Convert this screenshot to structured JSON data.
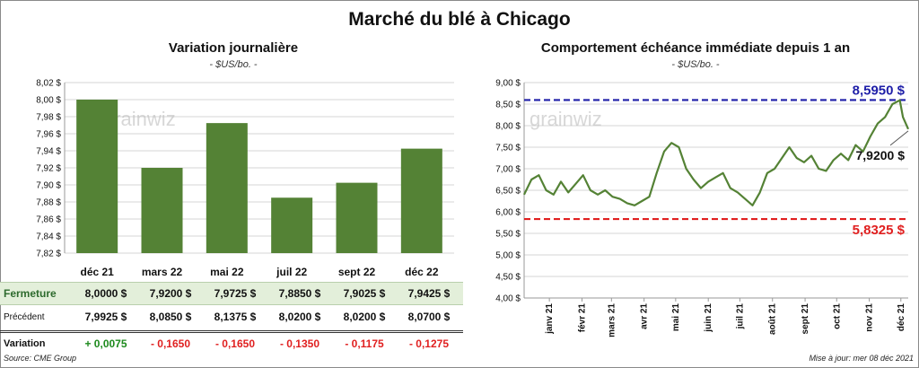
{
  "title": "Marché du blé à Chicago",
  "colors": {
    "bar": "#548235",
    "line": "#548235",
    "max": "#1f1fa8",
    "min": "#e02020",
    "pos": "#1d8a1d",
    "neg": "#e02020"
  },
  "left_panel": {
    "title": "Variation  journalière",
    "unit": "- $US/bo. -",
    "watermark": "grainwiz",
    "table": {
      "rows": [
        {
          "label": "Fermeture",
          "values": [
            "8,0000  $",
            "7,9200  $",
            "7,9725  $",
            "7,8850  $",
            "7,9025  $",
            "7,9425  $"
          ]
        },
        {
          "label": "Précédent",
          "values": [
            "7,9925  $",
            "8,0850  $",
            "8,1375  $",
            "8,0200  $",
            "8,0200  $",
            "8,0700  $"
          ]
        },
        {
          "label": "Variation",
          "values": [
            "+ 0,0075",
            "- 0,1650",
            "- 0,1650",
            "- 0,1350",
            "- 0,1175",
            "- 0,1275"
          ]
        }
      ]
    }
  },
  "right_panel": {
    "title": "Comportement  échéance immédiate depuis 1 an",
    "unit": "- $US/bo. -",
    "watermark": "grainwiz",
    "max_label": "8,5950  $",
    "min_label": "5,8325  $",
    "last_label": "7,9200 $"
  },
  "footer": {
    "source": "Source: CME Group",
    "updated": "Mise à jour: mer 08 déc 2021"
  },
  "chart_data": [
    {
      "type": "bar",
      "title": "Variation  journalière",
      "subtitle": "- $US/bo. -",
      "categories": [
        "déc 21",
        "mars 22",
        "mai 22",
        "juil 22",
        "sept 22",
        "déc 22"
      ],
      "values": [
        8.0,
        7.92,
        7.9725,
        7.885,
        7.9025,
        7.9425
      ],
      "ylim": [
        7.82,
        8.02
      ],
      "yticks": [
        "7,82 $",
        "7,84 $",
        "7,86 $",
        "7,88 $",
        "7,90 $",
        "7,92 $",
        "7,94 $",
        "7,96 $",
        "7,98 $",
        "8,00 $",
        "8,02 $"
      ],
      "grid": true
    },
    {
      "type": "line",
      "title": "Comportement  échéance immédiate depuis 1 an",
      "subtitle": "- $US/bo. -",
      "x": [
        "2020-12-08",
        "2020-12-15",
        "2020-12-22",
        "2020-12-29",
        "2021-01-05",
        "2021-01-12",
        "2021-01-19",
        "2021-01-26",
        "2021-02-02",
        "2021-02-09",
        "2021-02-16",
        "2021-02-23",
        "2021-03-02",
        "2021-03-09",
        "2021-03-16",
        "2021-03-23",
        "2021-03-30",
        "2021-04-06",
        "2021-04-13",
        "2021-04-20",
        "2021-04-27",
        "2021-05-04",
        "2021-05-11",
        "2021-05-18",
        "2021-05-25",
        "2021-06-01",
        "2021-06-08",
        "2021-06-15",
        "2021-06-22",
        "2021-06-29",
        "2021-07-06",
        "2021-07-13",
        "2021-07-20",
        "2021-07-27",
        "2021-08-03",
        "2021-08-10",
        "2021-08-17",
        "2021-08-24",
        "2021-08-31",
        "2021-09-07",
        "2021-09-14",
        "2021-09-21",
        "2021-09-28",
        "2021-10-05",
        "2021-10-12",
        "2021-10-19",
        "2021-10-26",
        "2021-11-02",
        "2021-11-09",
        "2021-11-16",
        "2021-11-23",
        "2021-11-30",
        "2021-12-03",
        "2021-12-08"
      ],
      "y": [
        6.4,
        6.75,
        6.85,
        6.5,
        6.4,
        6.7,
        6.45,
        6.65,
        6.85,
        6.5,
        6.4,
        6.5,
        6.35,
        6.3,
        6.2,
        6.15,
        6.25,
        6.35,
        6.9,
        7.4,
        7.6,
        7.5,
        7.0,
        6.75,
        6.55,
        6.7,
        6.8,
        6.9,
        6.55,
        6.45,
        6.3,
        6.15,
        6.45,
        6.9,
        7.0,
        7.25,
        7.5,
        7.25,
        7.15,
        7.3,
        7.0,
        6.95,
        7.2,
        7.35,
        7.2,
        7.55,
        7.4,
        7.75,
        8.05,
        8.2,
        8.5,
        8.59,
        8.2,
        7.92
      ],
      "xticks": [
        "janv 21",
        "févr 21",
        "mars 21",
        "avr 21",
        "mai 21",
        "juin 21",
        "juil 21",
        "août 21",
        "sept 21",
        "oct 21",
        "nov 21",
        "déc 21"
      ],
      "xtick_dates": [
        "2021-01-01",
        "2021-02-01",
        "2021-03-01",
        "2021-04-01",
        "2021-05-01",
        "2021-06-01",
        "2021-07-01",
        "2021-08-01",
        "2021-09-01",
        "2021-10-01",
        "2021-11-01",
        "2021-12-01"
      ],
      "ylim": [
        4.0,
        9.0
      ],
      "yticks": [
        "4,00 $",
        "4,50 $",
        "5,00 $",
        "5,50 $",
        "6,00 $",
        "6,50 $",
        "7,00 $",
        "7,50 $",
        "8,00 $",
        "8,50 $",
        "9,00 $"
      ],
      "max": 8.595,
      "min": 5.8325,
      "last": 7.92,
      "grid": true
    }
  ]
}
